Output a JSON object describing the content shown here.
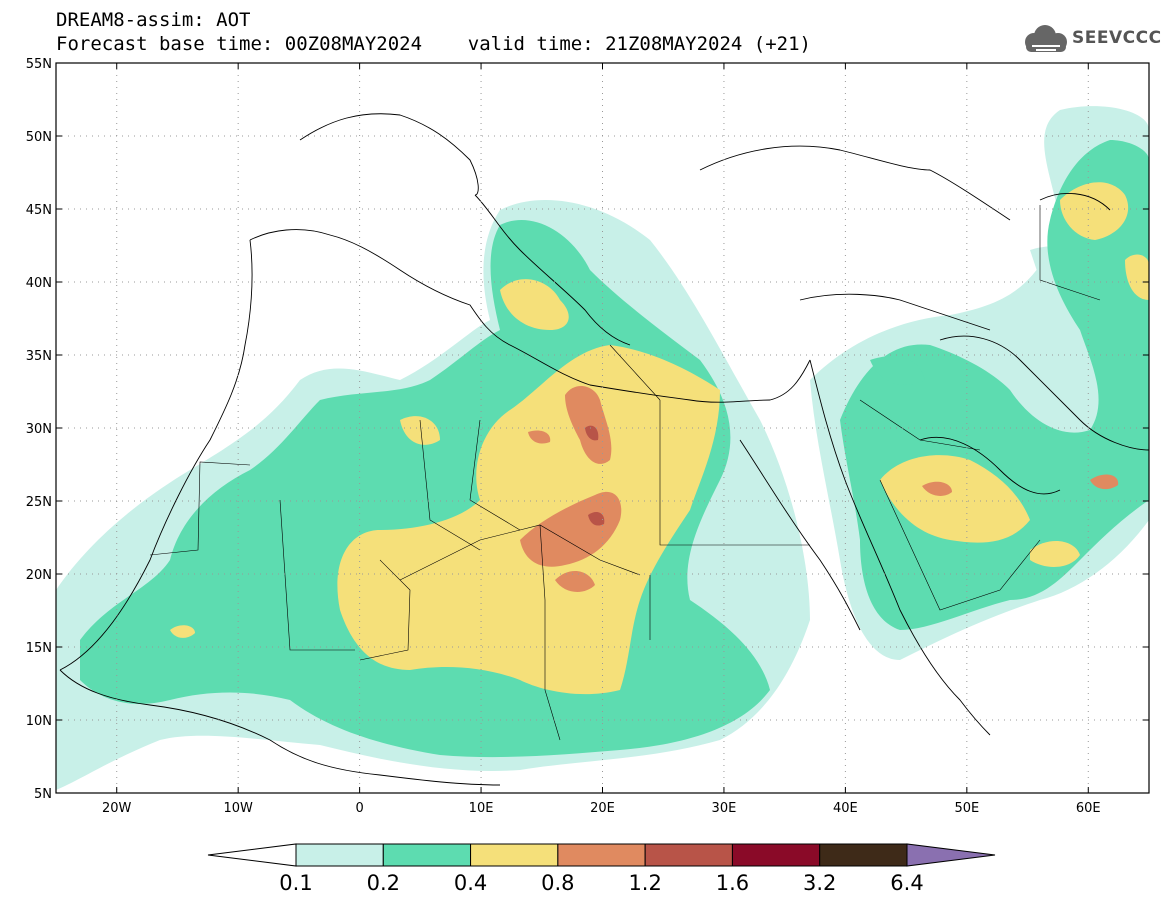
{
  "title": {
    "line1": "DREAM8-assim: AOT",
    "line2": "Forecast base time: 00Z08MAY2024    valid time: 21Z08MAY2024 (+21)"
  },
  "logo": {
    "text": "SEEVCCC",
    "icon": "cloud-icon",
    "color": "#666666"
  },
  "map": {
    "lon_range": [
      -25,
      65
    ],
    "lat_range": [
      5,
      55
    ],
    "grid": "dotted",
    "lat_ticks": [
      {
        "value": 55,
        "label": "55N"
      },
      {
        "value": 50,
        "label": "50N"
      },
      {
        "value": 45,
        "label": "45N"
      },
      {
        "value": 40,
        "label": "40N"
      },
      {
        "value": 35,
        "label": "35N"
      },
      {
        "value": 30,
        "label": "30N"
      },
      {
        "value": 25,
        "label": "25N"
      },
      {
        "value": 20,
        "label": "20N"
      },
      {
        "value": 15,
        "label": "15N"
      },
      {
        "value": 10,
        "label": "10N"
      },
      {
        "value": 5,
        "label": "5N"
      }
    ],
    "lon_ticks": [
      {
        "value": -20,
        "label": "20W"
      },
      {
        "value": -10,
        "label": "10W"
      },
      {
        "value": 0,
        "label": "0"
      },
      {
        "value": 10,
        "label": "10E"
      },
      {
        "value": 20,
        "label": "20E"
      },
      {
        "value": 30,
        "label": "30E"
      },
      {
        "value": 40,
        "label": "40E"
      },
      {
        "value": 50,
        "label": "50E"
      },
      {
        "value": 60,
        "label": "60E"
      }
    ]
  },
  "colorbar": {
    "levels": [
      "0.1",
      "0.2",
      "0.4",
      "0.8",
      "1.2",
      "1.6",
      "3.2",
      "6.4"
    ],
    "colors": [
      "#ffffff",
      "#c8f0e8",
      "#5ddcb0",
      "#f5e07a",
      "#e08a60",
      "#b85448",
      "#8a0a28",
      "#3e2a18",
      "#8a70b0"
    ]
  }
}
